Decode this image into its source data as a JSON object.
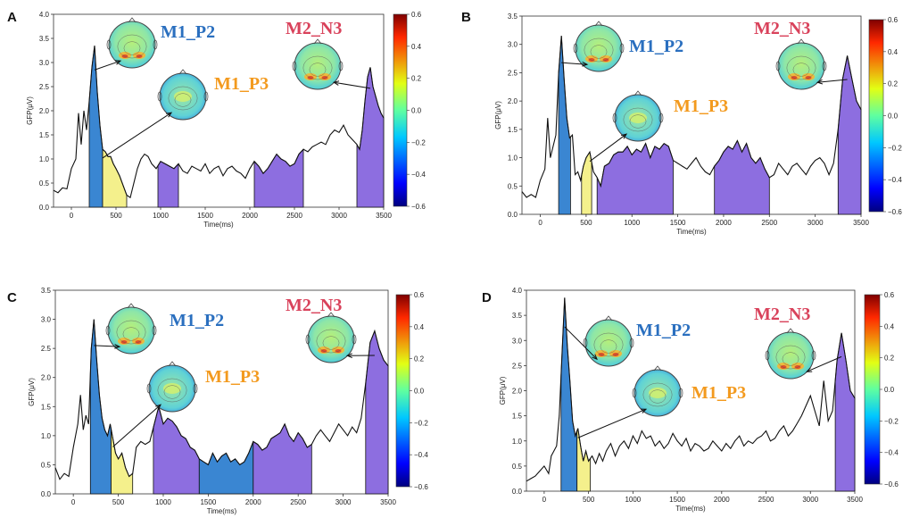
{
  "colors": {
    "blue": "#3a86d2",
    "yellow": "#f4f08c",
    "purple": "#8d6ee0",
    "label_p2": "#2a6fbf",
    "label_p3": "#f39a1e",
    "label_n3": "#d9425b"
  },
  "chart_data": [
    {
      "type": "line",
      "panel": "A",
      "xlabel": "Time(ms)",
      "ylabel": "GFP(μV)",
      "xlim": [
        -200,
        3500
      ],
      "ylim": [
        0,
        4.0
      ],
      "xticks": [
        0,
        500,
        1000,
        1500,
        2000,
        2500,
        3000,
        3500
      ],
      "yticks": [
        0.0,
        0.5,
        1.0,
        1.5,
        2.0,
        2.5,
        3.0,
        3.5,
        4.0
      ],
      "colorbar": {
        "min": -0.6,
        "max": 0.6,
        "ticks": [
          0.6,
          0.4,
          0.2,
          0.0,
          -0.2,
          -0.4,
          -0.6
        ]
      },
      "x": [
        -200,
        -150,
        -100,
        -50,
        0,
        50,
        80,
        110,
        140,
        170,
        200,
        230,
        260,
        290,
        320,
        350,
        380,
        410,
        440,
        470,
        500,
        540,
        580,
        620,
        660,
        700,
        740,
        780,
        820,
        860,
        900,
        950,
        1000,
        1050,
        1100,
        1150,
        1200,
        1250,
        1300,
        1350,
        1400,
        1450,
        1500,
        1550,
        1600,
        1650,
        1700,
        1750,
        1800,
        1850,
        1900,
        1950,
        2000,
        2050,
        2100,
        2150,
        2200,
        2250,
        2300,
        2350,
        2400,
        2450,
        2500,
        2550,
        2600,
        2650,
        2700,
        2750,
        2800,
        2850,
        2900,
        2950,
        3000,
        3050,
        3100,
        3150,
        3200,
        3230,
        3260,
        3290,
        3320,
        3350,
        3380,
        3410,
        3440,
        3470,
        3500
      ],
      "y": [
        0.35,
        0.3,
        0.4,
        0.38,
        0.8,
        1.0,
        1.95,
        1.3,
        2.0,
        1.6,
        2.2,
        2.9,
        3.35,
        2.4,
        1.7,
        1.2,
        1.15,
        1.05,
        1.05,
        0.9,
        0.8,
        0.65,
        0.45,
        0.25,
        0.2,
        0.5,
        0.8,
        1.0,
        1.1,
        1.05,
        0.9,
        0.8,
        0.95,
        0.9,
        0.85,
        0.8,
        0.9,
        0.75,
        0.7,
        0.85,
        0.8,
        0.75,
        0.9,
        0.7,
        0.8,
        0.85,
        0.65,
        0.8,
        0.85,
        0.75,
        0.7,
        0.6,
        0.8,
        0.95,
        0.85,
        0.7,
        0.8,
        0.95,
        1.1,
        1.0,
        0.95,
        0.85,
        0.9,
        1.1,
        1.2,
        1.15,
        1.25,
        1.3,
        1.35,
        1.3,
        1.5,
        1.6,
        1.55,
        1.7,
        1.5,
        1.4,
        1.3,
        1.2,
        1.6,
        2.2,
        2.7,
        2.9,
        2.5,
        2.3,
        2.1,
        1.95,
        1.85
      ],
      "components": [
        {
          "name": "M1_P2",
          "color": "blue",
          "start": 200,
          "end": 350,
          "label_color": "label_p2"
        },
        {
          "name": "M1_P3",
          "color": "yellow",
          "start": 350,
          "end": 620,
          "label_color": "label_p3"
        },
        {
          "name": "",
          "color": "purple",
          "start": 970,
          "end": 1200
        },
        {
          "name": "",
          "color": "purple",
          "start": 2050,
          "end": 2600
        },
        {
          "name": "M2_N3",
          "color": "purple",
          "start": 3200,
          "end": 3500,
          "label_color": "label_n3"
        }
      ],
      "topomaps": [
        {
          "label": "M1_P2",
          "label_color": "label_p2"
        },
        {
          "label": "M1_P3",
          "label_color": "label_p3"
        },
        {
          "label": "M2_N3",
          "label_color": "label_n3"
        }
      ]
    },
    {
      "type": "line",
      "panel": "B",
      "xlabel": "Time(ms)",
      "ylabel": "GFP(μV)",
      "xlim": [
        -200,
        3500
      ],
      "ylim": [
        0,
        3.5
      ],
      "xticks": [
        0,
        500,
        1000,
        1500,
        2000,
        2500,
        3000,
        3500
      ],
      "yticks": [
        0.0,
        0.5,
        1.0,
        1.5,
        2.0,
        2.5,
        3.0,
        3.5
      ],
      "colorbar": {
        "min": -0.6,
        "max": 0.6,
        "ticks": [
          0.6,
          0.4,
          0.2,
          0.0,
          -0.2,
          -0.4,
          -0.6
        ]
      },
      "x": [
        -200,
        -150,
        -100,
        -50,
        0,
        50,
        80,
        110,
        140,
        170,
        200,
        230,
        260,
        290,
        320,
        350,
        380,
        410,
        440,
        470,
        500,
        540,
        580,
        620,
        660,
        700,
        750,
        800,
        850,
        900,
        950,
        1000,
        1050,
        1100,
        1150,
        1200,
        1250,
        1300,
        1350,
        1400,
        1450,
        1500,
        1550,
        1600,
        1650,
        1700,
        1750,
        1800,
        1850,
        1900,
        1950,
        2000,
        2050,
        2100,
        2150,
        2200,
        2250,
        2300,
        2350,
        2400,
        2450,
        2500,
        2550,
        2600,
        2650,
        2700,
        2750,
        2800,
        2850,
        2900,
        2950,
        3000,
        3050,
        3100,
        3150,
        3200,
        3250,
        3300,
        3350,
        3400,
        3450,
        3500
      ],
      "y": [
        0.4,
        0.3,
        0.35,
        0.3,
        0.6,
        0.8,
        1.7,
        1.0,
        1.2,
        1.4,
        2.5,
        3.15,
        2.4,
        1.7,
        1.35,
        1.4,
        0.7,
        0.75,
        0.6,
        0.85,
        1.0,
        1.1,
        0.75,
        0.65,
        0.5,
        0.85,
        0.9,
        1.05,
        1.1,
        1.1,
        1.2,
        1.05,
        1.15,
        1.1,
        1.25,
        1.0,
        1.2,
        1.15,
        1.25,
        1.2,
        0.95,
        0.9,
        0.85,
        0.8,
        0.9,
        1.0,
        0.85,
        0.75,
        0.7,
        0.85,
        0.95,
        1.1,
        1.2,
        1.15,
        1.3,
        1.1,
        1.25,
        1.0,
        0.9,
        1.0,
        0.8,
        0.65,
        0.7,
        0.9,
        0.8,
        0.7,
        0.85,
        0.9,
        0.8,
        0.7,
        0.85,
        0.95,
        1.0,
        0.9,
        0.7,
        0.9,
        1.5,
        2.4,
        2.8,
        2.4,
        2.0,
        1.85
      ],
      "components": [
        {
          "name": "M1_P2",
          "color": "blue",
          "start": 200,
          "end": 330,
          "label_color": "label_p2"
        },
        {
          "name": "M1_P3",
          "color": "yellow",
          "start": 450,
          "end": 560,
          "label_color": "label_p3"
        },
        {
          "name": "",
          "color": "purple",
          "start": 620,
          "end": 1450
        },
        {
          "name": "",
          "color": "purple",
          "start": 1900,
          "end": 2500
        },
        {
          "name": "M2_N3",
          "color": "purple",
          "start": 3250,
          "end": 3500,
          "label_color": "label_n3"
        }
      ],
      "topomaps": [
        {
          "label": "M1_P2",
          "label_color": "label_p2"
        },
        {
          "label": "M1_P3",
          "label_color": "label_p3"
        },
        {
          "label": "M2_N3",
          "label_color": "label_n3"
        }
      ]
    },
    {
      "type": "line",
      "panel": "C",
      "xlabel": "Time(ms)",
      "ylabel": "GFP(μV)",
      "xlim": [
        -200,
        3500
      ],
      "ylim": [
        0,
        3.5
      ],
      "xticks": [
        0,
        500,
        1000,
        1500,
        2000,
        2500,
        3000,
        3500
      ],
      "yticks": [
        0.0,
        0.5,
        1.0,
        1.5,
        2.0,
        2.5,
        3.0,
        3.5
      ],
      "colorbar": {
        "min": -0.6,
        "max": 0.6,
        "ticks": [
          0.6,
          0.4,
          0.2,
          0.0,
          -0.2,
          -0.4,
          -0.6
        ]
      },
      "x": [
        -200,
        -150,
        -100,
        -50,
        0,
        50,
        80,
        110,
        140,
        170,
        200,
        230,
        260,
        290,
        320,
        350,
        380,
        410,
        440,
        470,
        500,
        540,
        580,
        620,
        660,
        700,
        750,
        800,
        850,
        900,
        950,
        1000,
        1050,
        1100,
        1150,
        1200,
        1250,
        1300,
        1350,
        1400,
        1450,
        1500,
        1550,
        1600,
        1650,
        1700,
        1750,
        1800,
        1850,
        1900,
        1950,
        2000,
        2050,
        2100,
        2150,
        2200,
        2250,
        2300,
        2350,
        2400,
        2450,
        2500,
        2550,
        2600,
        2650,
        2700,
        2750,
        2800,
        2850,
        2900,
        2950,
        3000,
        3050,
        3100,
        3150,
        3200,
        3250,
        3300,
        3350,
        3400,
        3450,
        3500
      ],
      "y": [
        0.45,
        0.25,
        0.35,
        0.3,
        0.8,
        1.2,
        1.7,
        1.1,
        1.35,
        1.2,
        2.5,
        3.0,
        2.3,
        1.7,
        1.3,
        1.1,
        1.0,
        1.2,
        0.95,
        0.7,
        0.6,
        0.7,
        0.45,
        0.3,
        0.35,
        0.8,
        0.9,
        0.85,
        0.9,
        1.2,
        1.5,
        1.2,
        1.3,
        1.25,
        1.15,
        1.0,
        0.95,
        0.8,
        0.75,
        0.6,
        0.55,
        0.5,
        0.7,
        0.55,
        0.65,
        0.7,
        0.55,
        0.6,
        0.5,
        0.55,
        0.7,
        0.9,
        0.85,
        0.75,
        0.8,
        0.95,
        1.0,
        1.05,
        1.2,
        1.0,
        0.9,
        1.05,
        0.95,
        0.8,
        0.85,
        1.0,
        1.1,
        1.0,
        0.9,
        1.05,
        1.2,
        1.1,
        1.0,
        1.15,
        1.05,
        1.3,
        1.9,
        2.6,
        2.8,
        2.5,
        2.3,
        2.2
      ],
      "components": [
        {
          "name": "M1_P2",
          "color": "blue",
          "start": 190,
          "end": 420,
          "label_color": "label_p2"
        },
        {
          "name": "M1_P3",
          "color": "yellow",
          "start": 420,
          "end": 660,
          "label_color": "label_p3"
        },
        {
          "name": "",
          "color": "purple",
          "start": 890,
          "end": 1400
        },
        {
          "name": "",
          "color": "blue",
          "start": 1400,
          "end": 2000
        },
        {
          "name": "",
          "color": "purple",
          "start": 2000,
          "end": 2650
        },
        {
          "name": "M2_N3",
          "color": "purple",
          "start": 3250,
          "end": 3500,
          "label_color": "label_n3"
        }
      ],
      "topomaps": [
        {
          "label": "M1_P2",
          "label_color": "label_p2"
        },
        {
          "label": "M1_P3",
          "label_color": "label_p3"
        },
        {
          "label": "M2_N3",
          "label_color": "label_n3"
        }
      ]
    },
    {
      "type": "line",
      "panel": "D",
      "xlabel": "Time(ms)",
      "ylabel": "GFP(μV)",
      "xlim": [
        -200,
        3500
      ],
      "ylim": [
        0,
        4.0
      ],
      "xticks": [
        0,
        500,
        1000,
        1500,
        2000,
        2500,
        3000,
        3500
      ],
      "yticks": [
        0.0,
        0.5,
        1.0,
        1.5,
        2.0,
        2.5,
        3.0,
        3.5,
        4.0
      ],
      "colorbar": {
        "min": -0.6,
        "max": 0.6,
        "ticks": [
          0.6,
          0.4,
          0.2,
          0.0,
          -0.2,
          -0.4,
          -0.6
        ]
      },
      "x": [
        -200,
        -150,
        -100,
        -50,
        0,
        50,
        80,
        110,
        140,
        170,
        200,
        230,
        260,
        290,
        320,
        350,
        380,
        410,
        440,
        470,
        500,
        540,
        580,
        620,
        660,
        700,
        750,
        800,
        850,
        900,
        950,
        1000,
        1050,
        1100,
        1150,
        1200,
        1250,
        1300,
        1350,
        1400,
        1450,
        1500,
        1550,
        1600,
        1650,
        1700,
        1750,
        1800,
        1850,
        1900,
        1950,
        2000,
        2050,
        2100,
        2150,
        2200,
        2250,
        2300,
        2350,
        2400,
        2450,
        2500,
        2550,
        2600,
        2650,
        2700,
        2750,
        2800,
        2850,
        2900,
        2950,
        3000,
        3050,
        3100,
        3150,
        3200,
        3250,
        3300,
        3350,
        3400,
        3450,
        3500
      ],
      "y": [
        0.2,
        0.25,
        0.3,
        0.4,
        0.5,
        0.35,
        0.7,
        0.8,
        0.9,
        1.5,
        2.7,
        3.85,
        2.9,
        2.2,
        1.4,
        1.1,
        1.25,
        0.9,
        0.6,
        0.8,
        0.6,
        0.7,
        0.55,
        0.75,
        0.6,
        0.8,
        0.95,
        0.7,
        0.9,
        1.0,
        0.85,
        1.1,
        0.95,
        1.2,
        1.05,
        1.1,
        0.9,
        1.0,
        0.85,
        0.95,
        1.15,
        1.0,
        0.9,
        1.05,
        0.8,
        0.95,
        0.9,
        0.8,
        0.85,
        1.0,
        0.9,
        0.8,
        0.95,
        0.85,
        1.0,
        1.1,
        0.9,
        1.0,
        0.95,
        1.05,
        1.1,
        1.2,
        1.0,
        1.05,
        1.2,
        1.3,
        1.1,
        1.2,
        1.35,
        1.5,
        1.7,
        1.9,
        1.6,
        1.3,
        2.2,
        1.4,
        1.6,
        2.6,
        3.15,
        2.6,
        2.0,
        1.85
      ],
      "components": [
        {
          "name": "M1_P2",
          "color": "blue",
          "start": 190,
          "end": 370,
          "label_color": "label_p2"
        },
        {
          "name": "M1_P3",
          "color": "yellow",
          "start": 370,
          "end": 520,
          "label_color": "label_p3"
        },
        {
          "name": "M2_N3",
          "color": "purple",
          "start": 3280,
          "end": 3500,
          "label_color": "label_n3"
        }
      ],
      "topomaps": [
        {
          "label": "M1_P2",
          "label_color": "label_p2"
        },
        {
          "label": "M1_P3",
          "label_color": "label_p3"
        },
        {
          "label": "M2_N3",
          "label_color": "label_n3"
        }
      ]
    }
  ]
}
